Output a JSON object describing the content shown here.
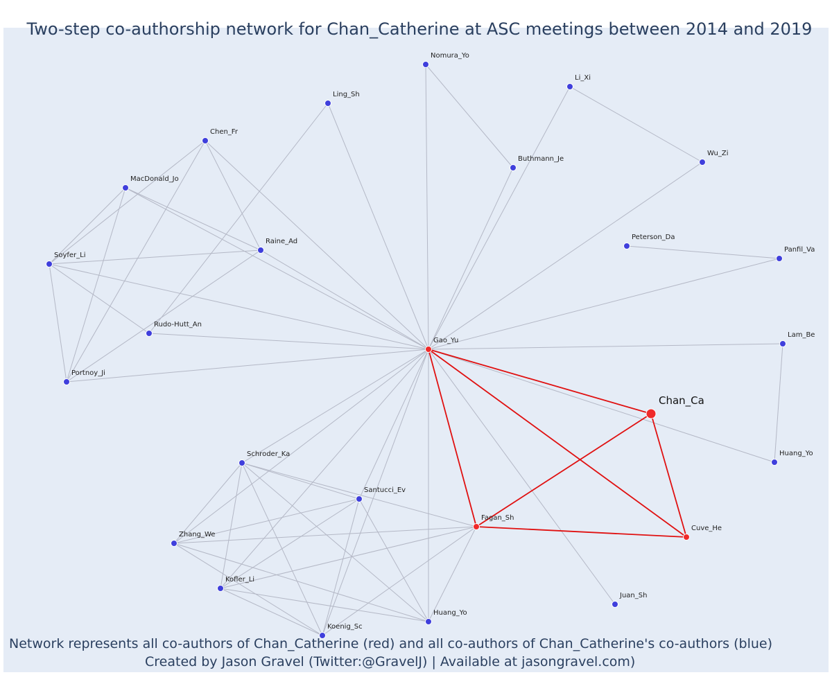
{
  "title": "Two-step co-authorship network for Chan_Catherine at ASC meetings between 2014 and 2019",
  "captions": {
    "line1": "Network represents all co-authors of Chan_Catherine (red) and all co-authors of Chan_Catherine's co-authors (blue)",
    "line2": "Created by Jason Gravel (Twitter:@GravelJ) | Available at jasongravel.com)"
  },
  "colors": {
    "background": "#e5ecf6",
    "red_node": "#ef2a2a",
    "blue_node": "#3f3fdc",
    "red_edge": "#e01010",
    "grey_edge": "#b4b8c6",
    "text": "#2a3f5f"
  },
  "nodes": [
    {
      "id": "Nomura_Yo",
      "label": "Nomura_Yo",
      "group": "blue"
    },
    {
      "id": "Li_Xi",
      "label": "Li_Xi",
      "group": "blue"
    },
    {
      "id": "Ling_Sh",
      "label": "Ling_Sh",
      "group": "blue"
    },
    {
      "id": "Chen_Fr",
      "label": "Chen_Fr",
      "group": "blue"
    },
    {
      "id": "Buthmann_Je",
      "label": "Buthmann_Je",
      "group": "blue"
    },
    {
      "id": "Wu_Zi",
      "label": "Wu_Zi",
      "group": "blue"
    },
    {
      "id": "MacDonald_Jo",
      "label": "MacDonald_Jo",
      "group": "blue"
    },
    {
      "id": "Raine_Ad",
      "label": "Raine_Ad",
      "group": "blue"
    },
    {
      "id": "Peterson_Da",
      "label": "Peterson_Da",
      "group": "blue"
    },
    {
      "id": "Panfil_Va",
      "label": "Panfil_Va",
      "group": "blue"
    },
    {
      "id": "Soyfer_Li",
      "label": "Soyfer_Li",
      "group": "blue"
    },
    {
      "id": "Rudo-Hutt_An",
      "label": "Rudo-Hutt_An",
      "group": "blue"
    },
    {
      "id": "Gao_Yu",
      "label": "Gao_Yu",
      "group": "red"
    },
    {
      "id": "Lam_Be",
      "label": "Lam_Be",
      "group": "blue"
    },
    {
      "id": "Portnoy_Ji",
      "label": "Portnoy_Ji",
      "group": "blue"
    },
    {
      "id": "Chan_Ca",
      "label": "Chan_Ca",
      "group": "focus"
    },
    {
      "id": "Huang_Yo_1",
      "label": "Huang_Yo",
      "group": "blue"
    },
    {
      "id": "Schroder_Ka",
      "label": "Schroder_Ka",
      "group": "blue"
    },
    {
      "id": "Santucci_Ev",
      "label": "Santucci_Ev",
      "group": "blue"
    },
    {
      "id": "Fagan_Sh",
      "label": "Fagan_Sh",
      "group": "red"
    },
    {
      "id": "Cuve_He",
      "label": "Cuve_He",
      "group": "red"
    },
    {
      "id": "Zhang_We",
      "label": "Zhang_We",
      "group": "blue"
    },
    {
      "id": "Kofler_Li",
      "label": "Kofler_Li",
      "group": "blue"
    },
    {
      "id": "Juan_Sh",
      "label": "Juan_Sh",
      "group": "blue"
    },
    {
      "id": "Huang_Yo_2",
      "label": "Huang_Yo",
      "group": "blue"
    },
    {
      "id": "Koenig_Sc",
      "label": "Koenig_Sc",
      "group": "blue"
    }
  ],
  "edges": [
    [
      "Chan_Ca",
      "Gao_Yu",
      "red"
    ],
    [
      "Chan_Ca",
      "Fagan_Sh",
      "red"
    ],
    [
      "Chan_Ca",
      "Cuve_He",
      "red"
    ],
    [
      "Gao_Yu",
      "Fagan_Sh",
      "red"
    ],
    [
      "Gao_Yu",
      "Cuve_He",
      "red"
    ],
    [
      "Fagan_Sh",
      "Cuve_He",
      "red"
    ],
    [
      "Gao_Yu",
      "Nomura_Yo",
      "grey"
    ],
    [
      "Gao_Yu",
      "Li_Xi",
      "grey"
    ],
    [
      "Gao_Yu",
      "Ling_Sh",
      "grey"
    ],
    [
      "Gao_Yu",
      "Chen_Fr",
      "grey"
    ],
    [
      "Gao_Yu",
      "Buthmann_Je",
      "grey"
    ],
    [
      "Gao_Yu",
      "Wu_Zi",
      "grey"
    ],
    [
      "Gao_Yu",
      "MacDonald_Jo",
      "grey"
    ],
    [
      "Gao_Yu",
      "Raine_Ad",
      "grey"
    ],
    [
      "Gao_Yu",
      "Panfil_Va",
      "grey"
    ],
    [
      "Gao_Yu",
      "Soyfer_Li",
      "grey"
    ],
    [
      "Gao_Yu",
      "Rudo-Hutt_An",
      "grey"
    ],
    [
      "Gao_Yu",
      "Lam_Be",
      "grey"
    ],
    [
      "Gao_Yu",
      "Portnoy_Ji",
      "grey"
    ],
    [
      "Gao_Yu",
      "Huang_Yo_1",
      "grey"
    ],
    [
      "Gao_Yu",
      "Schroder_Ka",
      "grey"
    ],
    [
      "Gao_Yu",
      "Zhang_We",
      "grey"
    ],
    [
      "Gao_Yu",
      "Kofler_Li",
      "grey"
    ],
    [
      "Gao_Yu",
      "Juan_Sh",
      "grey"
    ],
    [
      "Gao_Yu",
      "Huang_Yo_2",
      "grey"
    ],
    [
      "Gao_Yu",
      "Koenig_Sc",
      "grey"
    ],
    [
      "Gao_Yu",
      "Santucci_Ev",
      "grey"
    ],
    [
      "Nomura_Yo",
      "Buthmann_Je",
      "grey"
    ],
    [
      "Li_Xi",
      "Wu_Zi",
      "grey"
    ],
    [
      "Peterson_Da",
      "Panfil_Va",
      "grey"
    ],
    [
      "Lam_Be",
      "Huang_Yo_1",
      "grey"
    ],
    [
      "Ling_Sh",
      "Rudo-Hutt_An",
      "grey"
    ],
    [
      "Chen_Fr",
      "Raine_Ad",
      "grey"
    ],
    [
      "Chen_Fr",
      "Portnoy_Ji",
      "grey"
    ],
    [
      "Chen_Fr",
      "Soyfer_Li",
      "grey"
    ],
    [
      "MacDonald_Jo",
      "Raine_Ad",
      "grey"
    ],
    [
      "MacDonald_Jo",
      "Soyfer_Li",
      "grey"
    ],
    [
      "MacDonald_Jo",
      "Portnoy_Ji",
      "grey"
    ],
    [
      "Soyfer_Li",
      "Raine_Ad",
      "grey"
    ],
    [
      "Soyfer_Li",
      "Rudo-Hutt_An",
      "grey"
    ],
    [
      "Soyfer_Li",
      "Portnoy_Ji",
      "grey"
    ],
    [
      "Raine_Ad",
      "Portnoy_Ji",
      "grey"
    ],
    [
      "Schroder_Ka",
      "Santucci_Ev",
      "grey"
    ],
    [
      "Schroder_Ka",
      "Fagan_Sh",
      "grey"
    ],
    [
      "Schroder_Ka",
      "Zhang_We",
      "grey"
    ],
    [
      "Schroder_Ka",
      "Kofler_Li",
      "grey"
    ],
    [
      "Schroder_Ka",
      "Koenig_Sc",
      "grey"
    ],
    [
      "Schroder_Ka",
      "Huang_Yo_2",
      "grey"
    ],
    [
      "Santucci_Ev",
      "Zhang_We",
      "grey"
    ],
    [
      "Santucci_Ev",
      "Kofler_Li",
      "grey"
    ],
    [
      "Santucci_Ev",
      "Koenig_Sc",
      "grey"
    ],
    [
      "Santucci_Ev",
      "Huang_Yo_2",
      "grey"
    ],
    [
      "Fagan_Sh",
      "Zhang_We",
      "grey"
    ],
    [
      "Fagan_Sh",
      "Kofler_Li",
      "grey"
    ],
    [
      "Fagan_Sh",
      "Koenig_Sc",
      "grey"
    ],
    [
      "Fagan_Sh",
      "Huang_Yo_2",
      "grey"
    ],
    [
      "Zhang_We",
      "Koenig_Sc",
      "grey"
    ],
    [
      "Zhang_We",
      "Huang_Yo_2",
      "grey"
    ],
    [
      "Kofler_Li",
      "Huang_Yo_2",
      "grey"
    ],
    [
      "Kofler_Li",
      "Koenig_Sc",
      "grey"
    ]
  ]
}
